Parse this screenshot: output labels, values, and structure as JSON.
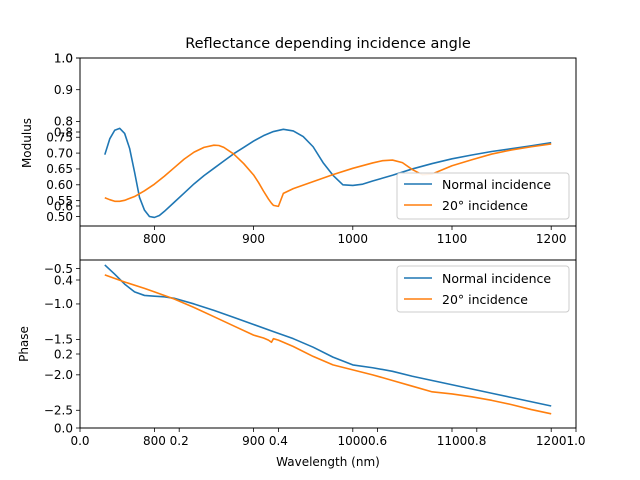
{
  "chart_data": [
    {
      "type": "line",
      "title": "Reflectance depending incidence angle",
      "ylabel": "Modulus",
      "xlim": [
        725,
        1225
      ],
      "ylim": [
        0.47,
        1.0
      ],
      "x_ticks": [
        800,
        900,
        1000,
        1100,
        1200
      ],
      "y_ticks": [
        "0.50",
        "0.55",
        "0.60",
        "0.65",
        "0.70",
        "0.75",
        "0.8",
        "0.9",
        "1.0"
      ],
      "y_tick_values": [
        0.5,
        0.55,
        0.6,
        0.65,
        0.7,
        0.75,
        0.8,
        0.9,
        1.0
      ],
      "legend": {
        "position": "lower-right",
        "entries": [
          "Normal incidence",
          "20° incidence"
        ]
      },
      "series": [
        {
          "name": "Normal incidence",
          "color": "#1f77b4",
          "x": [
            750,
            755,
            760,
            765,
            770,
            775,
            780,
            785,
            790,
            795,
            800,
            805,
            810,
            820,
            830,
            840,
            850,
            860,
            870,
            880,
            890,
            900,
            910,
            920,
            930,
            940,
            950,
            960,
            970,
            980,
            990,
            1000,
            1010,
            1020,
            1040,
            1060,
            1080,
            1100,
            1120,
            1140,
            1160,
            1180,
            1200
          ],
          "y": [
            0.695,
            0.745,
            0.772,
            0.778,
            0.762,
            0.715,
            0.64,
            0.56,
            0.52,
            0.5,
            0.497,
            0.503,
            0.516,
            0.545,
            0.574,
            0.603,
            0.629,
            0.652,
            0.675,
            0.698,
            0.718,
            0.738,
            0.755,
            0.768,
            0.775,
            0.77,
            0.752,
            0.72,
            0.67,
            0.63,
            0.6,
            0.598,
            0.602,
            0.612,
            0.63,
            0.65,
            0.667,
            0.682,
            0.694,
            0.705,
            0.714,
            0.723,
            0.733
          ]
        },
        {
          "name": "20° incidence",
          "color": "#ff7f0e",
          "x": [
            750,
            755,
            760,
            765,
            770,
            780,
            790,
            800,
            810,
            820,
            830,
            840,
            850,
            860,
            865,
            870,
            880,
            890,
            900,
            905,
            910,
            915,
            918,
            920,
            925,
            930,
            940,
            960,
            980,
            1000,
            1020,
            1030,
            1040,
            1050,
            1060,
            1070,
            1080,
            1090,
            1100,
            1120,
            1140,
            1160,
            1180,
            1200
          ],
          "y": [
            0.559,
            0.553,
            0.548,
            0.548,
            0.551,
            0.563,
            0.581,
            0.602,
            0.627,
            0.654,
            0.681,
            0.703,
            0.718,
            0.725,
            0.724,
            0.718,
            0.697,
            0.667,
            0.631,
            0.607,
            0.58,
            0.555,
            0.542,
            0.535,
            0.532,
            0.573,
            0.588,
            0.61,
            0.632,
            0.652,
            0.669,
            0.676,
            0.678,
            0.67,
            0.648,
            0.632,
            0.634,
            0.647,
            0.66,
            0.679,
            0.697,
            0.71,
            0.72,
            0.729
          ]
        }
      ]
    },
    {
      "type": "line",
      "ylabel": "Phase",
      "xlabel": "Wavelength (nm)",
      "xlim": [
        725,
        1225
      ],
      "ylim": [
        -2.75,
        -0.38
      ],
      "x_ticks": [
        800,
        900,
        1000,
        1100,
        1200
      ],
      "y_ticks": [
        "−2.5",
        "−2.0",
        "−1.5",
        "−1.0",
        "−0.5"
      ],
      "y_tick_values": [
        -2.5,
        -2.0,
        -1.5,
        -1.0,
        -0.5
      ],
      "legend": {
        "position": "upper-right",
        "entries": [
          "Normal incidence",
          "20° incidence"
        ]
      },
      "series": [
        {
          "name": "Normal incidence",
          "color": "#1f77b4",
          "x": [
            750,
            760,
            770,
            780,
            790,
            800,
            810,
            820,
            840,
            860,
            880,
            900,
            920,
            940,
            960,
            980,
            1000,
            1020,
            1040,
            1060,
            1080,
            1100,
            1120,
            1140,
            1160,
            1180,
            1200
          ],
          "y": [
            -0.45,
            -0.58,
            -0.72,
            -0.83,
            -0.88,
            -0.89,
            -0.9,
            -0.92,
            -1.0,
            -1.09,
            -1.19,
            -1.29,
            -1.39,
            -1.49,
            -1.61,
            -1.75,
            -1.86,
            -1.9,
            -1.95,
            -2.02,
            -2.08,
            -2.14,
            -2.2,
            -2.26,
            -2.32,
            -2.38,
            -2.44
          ]
        },
        {
          "name": "20° incidence",
          "color": "#ff7f0e",
          "x": [
            750,
            770,
            790,
            800,
            820,
            840,
            860,
            880,
            900,
            910,
            915,
            918,
            920,
            925,
            930,
            940,
            960,
            980,
            1000,
            1020,
            1040,
            1060,
            1080,
            1100,
            1120,
            1140,
            1160,
            1180,
            1200
          ],
          "y": [
            -0.59,
            -0.69,
            -0.78,
            -0.83,
            -0.93,
            -1.05,
            -1.18,
            -1.31,
            -1.44,
            -1.48,
            -1.51,
            -1.54,
            -1.49,
            -1.51,
            -1.54,
            -1.6,
            -1.74,
            -1.86,
            -1.93,
            -2.0,
            -2.08,
            -2.16,
            -2.24,
            -2.27,
            -2.31,
            -2.36,
            -2.42,
            -2.49,
            -2.55
          ]
        }
      ]
    },
    {
      "type": "line",
      "note_axes": "empty overlay axes",
      "xlim": [
        0.0,
        1.0
      ],
      "ylim": [
        0.0,
        1.0
      ],
      "x_ticks": [
        "0.0",
        "0.2",
        "0.4",
        "0.6",
        "0.8",
        "1.0"
      ],
      "x_tick_values": [
        0.0,
        0.2,
        0.4,
        0.6,
        0.8,
        1.0
      ],
      "y_ticks": [
        "0.0",
        "0.2",
        "0.4",
        "0.6",
        "0.8",
        "1.0"
      ],
      "y_tick_values": [
        0.0,
        0.2,
        0.4,
        0.6,
        0.8,
        1.0
      ],
      "series": []
    }
  ]
}
